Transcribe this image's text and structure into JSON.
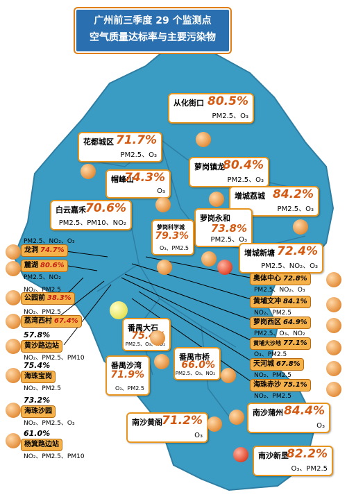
{
  "title": {
    "line1": "广州前三季度 29 个监测点",
    "line2": "空气质量达标率与主要污染物"
  },
  "colors": {
    "land": "#3b9cc3",
    "border": "#2e7ea3",
    "card_border": "#e7951e",
    "ball": "#e48f3c",
    "ball_red": "#e0462b",
    "ball_yellow": "#e6e25a"
  },
  "stations": [
    {
      "name": "从化街口",
      "pct": "80.5%",
      "pollutants": "PM2.5、O₃"
    },
    {
      "name": "花都城区",
      "pct": "71.7%",
      "pollutants": "PM2.5、O₃"
    },
    {
      "name": "萝岗镇龙",
      "pct": "80.4%",
      "pollutants": "PM2.5、O₃"
    },
    {
      "name": "帽峰山",
      "pct": "74.3%",
      "pollutants": "O₃"
    },
    {
      "name": "增城荔城",
      "pct": "84.2%",
      "pollutants": "PM2.5、O₃"
    },
    {
      "name": "白云嘉禾",
      "pct": "70.6%",
      "pollutants": "PM2.5、PM10、NO₂"
    },
    {
      "name": "萝岗永和",
      "pct": "73.8%",
      "pollutants": "PM2.5、O₃"
    },
    {
      "name": "萝岗科学城",
      "pct": "79.3%",
      "pollutants": "O₃、PM2.5"
    },
    {
      "name": "增城新塘",
      "pct": "72.4%",
      "pollutants": "PM2.5、NO₂、O₃"
    },
    {
      "name": "番禺大石",
      "pct": "75.4%",
      "pollutants": "PM2.5、O₃、NO₂"
    },
    {
      "name": "番禺市桥",
      "pct": "66.0%",
      "pollutants": "PM2.5、O₃、NO₂"
    },
    {
      "name": "番禺沙湾",
      "pct": "71.9%",
      "pollutants": "O₃、PM2.5"
    },
    {
      "name": "南沙黄阁",
      "pct": "71.2%",
      "pollutants": "O₃"
    },
    {
      "name": "南沙蒲州",
      "pct": "84.4%",
      "pollutants": "O₃"
    },
    {
      "name": "南沙新垦",
      "pct": "82.2%",
      "pollutants": "O₃、PM2.5"
    }
  ],
  "left_stations": [
    {
      "name": "龙洞",
      "pct": "74.7%",
      "pollutants": "PM2.5、NO₂、O₃"
    },
    {
      "name": "麓湖",
      "pct": "80.6%",
      "pollutants": "PM2.5、NO₂"
    },
    {
      "name": "公园前",
      "pct": "38.3%",
      "pollutants": "NO₂、PM2.5"
    },
    {
      "name": "荔湾西村",
      "pct": "67.4%",
      "pollutants": "NO₂、PM2.5"
    },
    {
      "name": "黄沙路边站",
      "pct": "57.8%",
      "pollutants": "NO₂、PM2.5、PM10"
    },
    {
      "name": "海珠宝岗",
      "pct": "75.4%",
      "pollutants": "NO₂、PM2.5"
    },
    {
      "name": "海珠沙园",
      "pct": "73.2%",
      "pollutants": "NO₂、PM2.5、O₃"
    },
    {
      "name": "杨箕路边站",
      "pct": "61.0%",
      "pollutants": "NO₂、PM2.5、PM10"
    }
  ],
  "right_stations": [
    {
      "name": "奥体中心",
      "pct": "72.8%",
      "pollutants": "PM2.5、NO₂、O₃"
    },
    {
      "name": "黄埔文冲",
      "pct": "84.1%",
      "pollutants": "NO₂、PM2.5"
    },
    {
      "name": "萝岗西区",
      "pct": "64.9%",
      "pollutants": "PM2.5、O₃、NO₂"
    },
    {
      "name": "黄埔大沙地",
      "pct": "77.1%",
      "pollutants": "O₃、PM2.5"
    },
    {
      "name": "天河城",
      "pct": "67.8%",
      "pollutants": "NO₂、PM2.5"
    },
    {
      "name": "海珠赤沙",
      "pct": "75.1%",
      "pollutants": "NO₂、PM2.5"
    }
  ]
}
